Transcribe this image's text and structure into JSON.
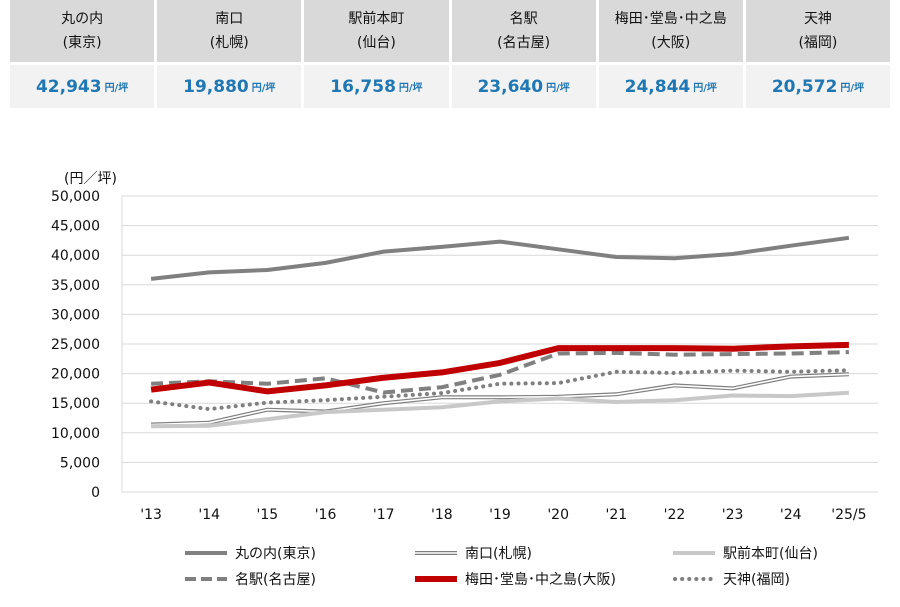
{
  "price_table": {
    "unit": "円/坪",
    "areas": [
      {
        "name": "丸の内",
        "city": "(東京)",
        "value": "42,943"
      },
      {
        "name": "南口",
        "city": "(札幌)",
        "value": "19,880"
      },
      {
        "name": "駅前本町",
        "city": "(仙台)",
        "value": "16,758"
      },
      {
        "name": "名駅",
        "city": "(名古屋)",
        "value": "23,640"
      },
      {
        "name": "梅田･堂島･中之島",
        "city": "(大阪)",
        "value": "24,844"
      },
      {
        "name": "天神",
        "city": "(福岡)",
        "value": "20,572"
      }
    ]
  },
  "chart_data": {
    "type": "line",
    "ylabel": "(円／坪)",
    "ylim": [
      0,
      50000
    ],
    "yticks": [
      "0",
      "5,000",
      "10,000",
      "15,000",
      "20,000",
      "25,000",
      "30,000",
      "35,000",
      "40,000",
      "45,000",
      "50,000"
    ],
    "grid": true,
    "legend_placement": "bottom",
    "categories": [
      "'13",
      "'14",
      "'15",
      "'16",
      "'17",
      "'18",
      "'19",
      "'20",
      "'21",
      "'22",
      "'23",
      "'24",
      "'25/5"
    ],
    "series": [
      {
        "name": "丸の内(東京)",
        "color": "#808080",
        "style": "solid",
        "values": [
          36000,
          37100,
          37500,
          38700,
          40600,
          41400,
          42300,
          41000,
          39700,
          39500,
          40200,
          41600,
          42943
        ]
      },
      {
        "name": "南口(札幌)",
        "color": "#7f7f7f",
        "style": "double",
        "values": [
          11400,
          11700,
          13900,
          13600,
          15000,
          16000,
          16000,
          16100,
          16500,
          18000,
          17500,
          19500,
          19880
        ]
      },
      {
        "name": "駅前本町(仙台)",
        "color": "#c8c8c8",
        "style": "solid",
        "values": [
          11100,
          11200,
          12300,
          13500,
          13900,
          14300,
          15300,
          15800,
          15200,
          15500,
          16300,
          16200,
          16758
        ]
      },
      {
        "name": "名駅(名古屋)",
        "color": "#808080",
        "style": "dashed",
        "values": [
          18300,
          18700,
          18300,
          19200,
          16800,
          17700,
          19800,
          23400,
          23500,
          23200,
          23300,
          23400,
          23640
        ]
      },
      {
        "name": "梅田･堂島･中之島(大阪)",
        "color": "#c00000",
        "style": "solid",
        "values": [
          17300,
          18500,
          17000,
          18000,
          19300,
          20200,
          21800,
          24300,
          24300,
          24300,
          24200,
          24600,
          24844
        ]
      },
      {
        "name": "天神(福岡)",
        "color": "#808080",
        "style": "dotted",
        "values": [
          15300,
          14000,
          15100,
          15500,
          16100,
          16700,
          18300,
          18400,
          20300,
          20100,
          20500,
          20300,
          20572
        ]
      }
    ]
  }
}
